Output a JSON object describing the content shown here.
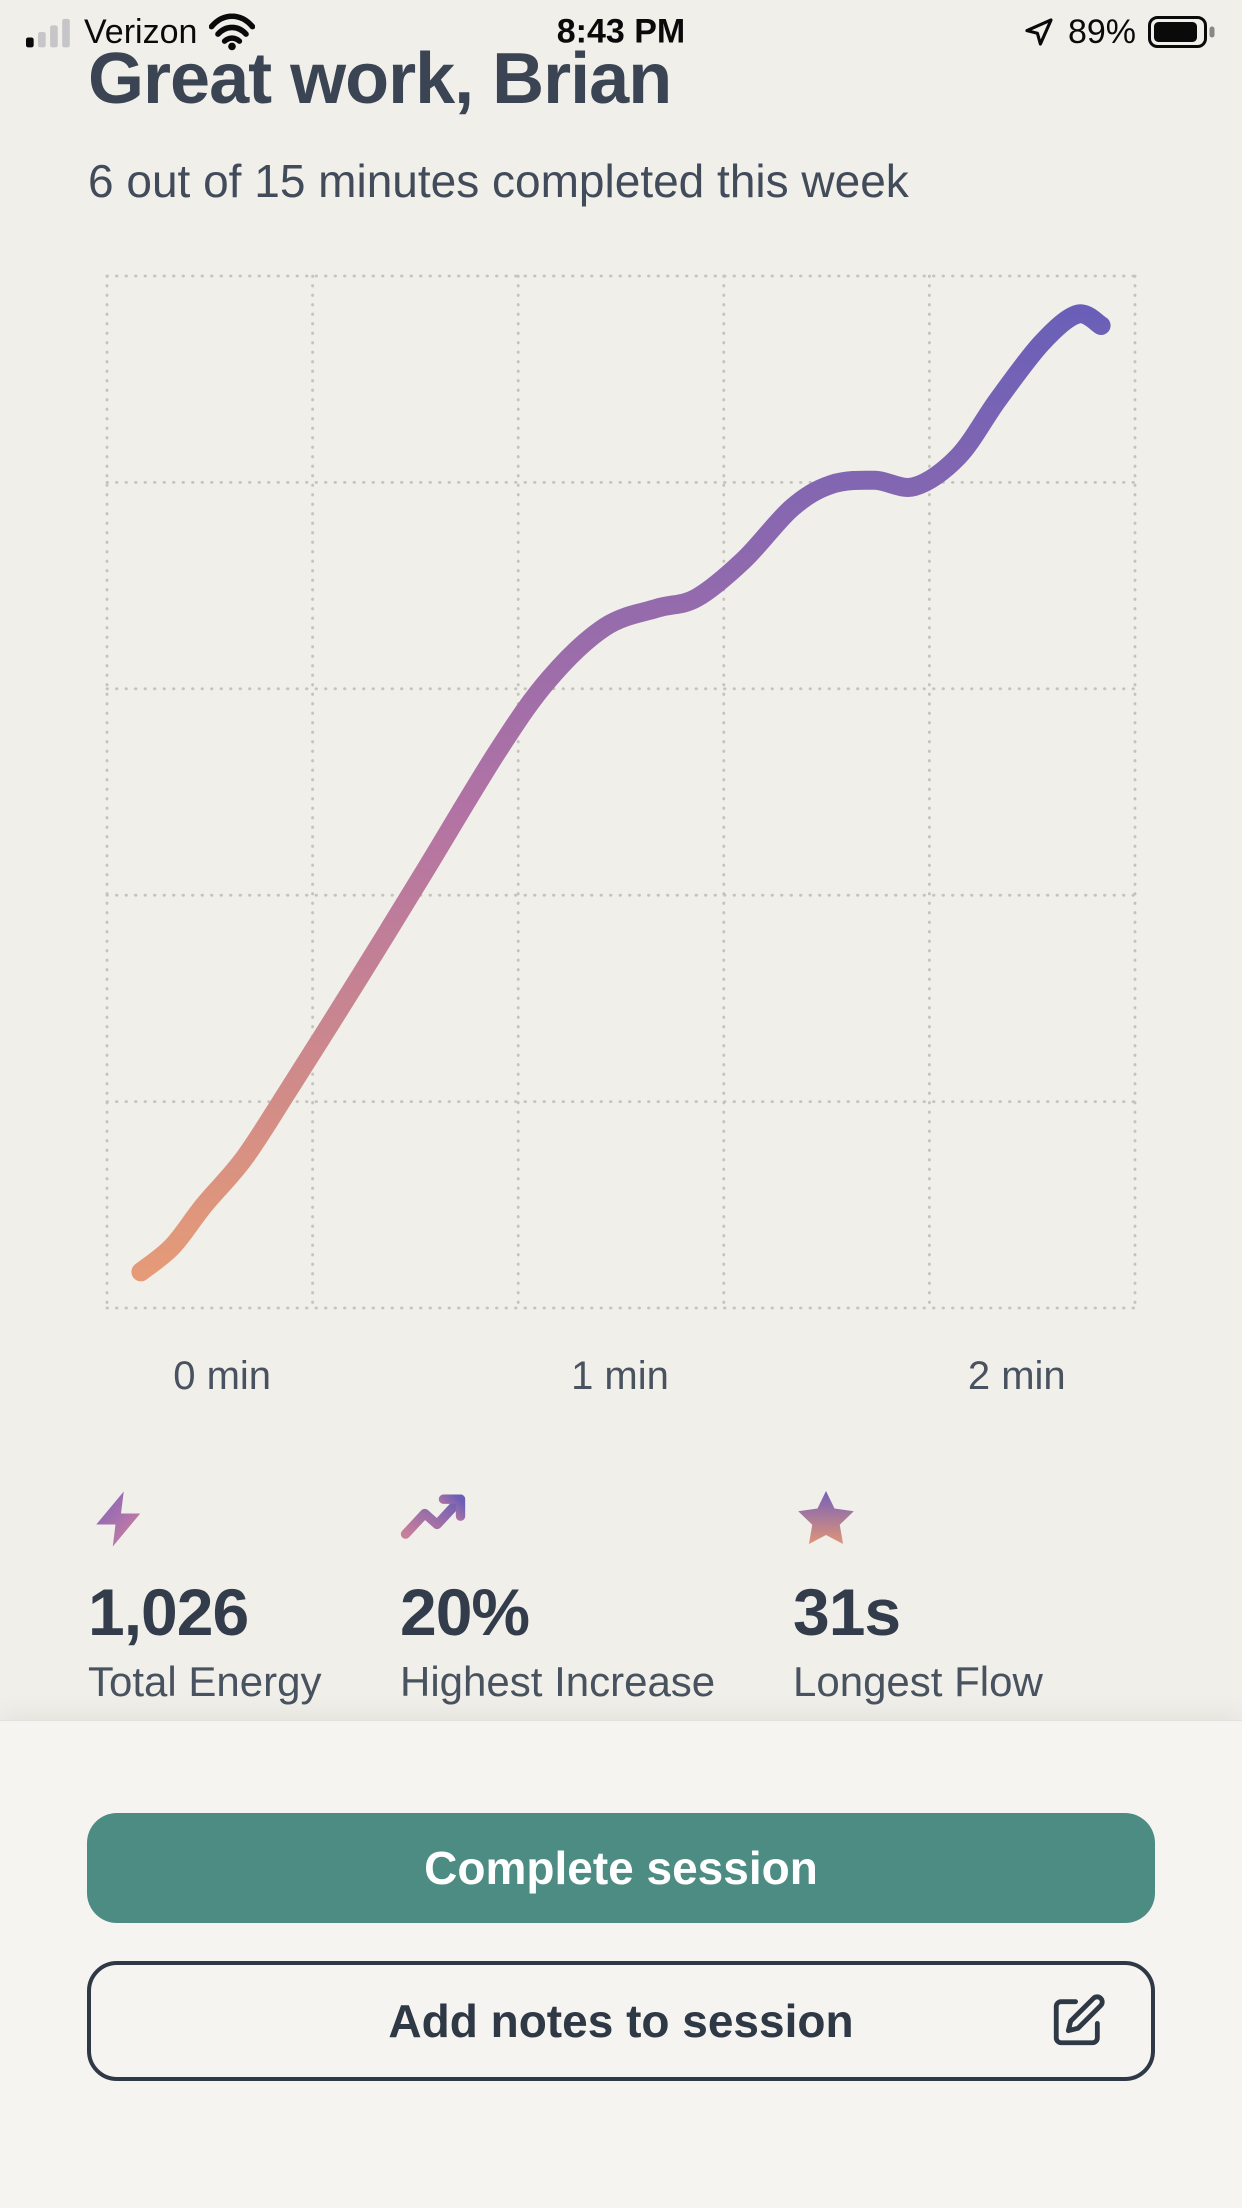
{
  "status_bar": {
    "carrier": "Verizon",
    "time": "8:43 PM",
    "battery_percent": "89%"
  },
  "header": {
    "title": "Great work, Brian",
    "subtitle": "6 out of 15 minutes completed this week"
  },
  "chart_data": {
    "type": "line",
    "title": "",
    "xlabel": "",
    "ylabel": "",
    "legend": "none",
    "grid": {
      "rows": 5,
      "cols": 5,
      "style": "dotted"
    },
    "x_range_min": [
      0,
      2.42
    ],
    "y_range": [
      0,
      100
    ],
    "x_ticks": [
      {
        "label": "0 min",
        "pos": 0.112
      },
      {
        "label": "1 min",
        "pos": 0.499
      },
      {
        "label": "2 min",
        "pos": 0.885
      }
    ],
    "series": [
      {
        "name": "session-energy",
        "gradient": {
          "bottom": "#E59B77",
          "mid": "#B273A4",
          "top": "#6A5FB8"
        },
        "points": [
          {
            "t": 0.0,
            "v": 3.5
          },
          {
            "t": 0.08,
            "v": 6
          },
          {
            "t": 0.16,
            "v": 10
          },
          {
            "t": 0.26,
            "v": 14.5
          },
          {
            "t": 0.37,
            "v": 21
          },
          {
            "t": 0.55,
            "v": 32
          },
          {
            "t": 0.71,
            "v": 42
          },
          {
            "t": 0.9,
            "v": 54
          },
          {
            "t": 1.03,
            "v": 61
          },
          {
            "t": 1.17,
            "v": 66
          },
          {
            "t": 1.3,
            "v": 67.8
          },
          {
            "t": 1.4,
            "v": 68.8
          },
          {
            "t": 1.52,
            "v": 72.5
          },
          {
            "t": 1.64,
            "v": 77.5
          },
          {
            "t": 1.74,
            "v": 79.8
          },
          {
            "t": 1.85,
            "v": 80.2
          },
          {
            "t": 1.95,
            "v": 79.6
          },
          {
            "t": 2.06,
            "v": 82.5
          },
          {
            "t": 2.16,
            "v": 88
          },
          {
            "t": 2.27,
            "v": 93.5
          },
          {
            "t": 2.36,
            "v": 96.3
          },
          {
            "t": 2.42,
            "v": 95.2
          }
        ]
      }
    ]
  },
  "stats": [
    {
      "icon": "lightning-icon",
      "value": "1,026",
      "label": "Total Energy"
    },
    {
      "icon": "trending-up-icon",
      "value": "20%",
      "label": "Highest Increase"
    },
    {
      "icon": "star-icon",
      "value": "31s",
      "label": "Longest Flow"
    }
  ],
  "actions": {
    "complete": "Complete session",
    "add_notes": "Add notes to session"
  },
  "colors": {
    "background": "#F0EFEA",
    "sheet_background": "#F5F4F1",
    "title_text": "#3A4453",
    "grid_dots": "#C4C3BE",
    "teal_button": "#4D8C83",
    "button_text": "#FFFFFF",
    "outline_border": "#2F3845",
    "gradient_top": "#6A5FB8",
    "gradient_mid": "#B273A4",
    "gradient_bottom": "#E59B77"
  }
}
